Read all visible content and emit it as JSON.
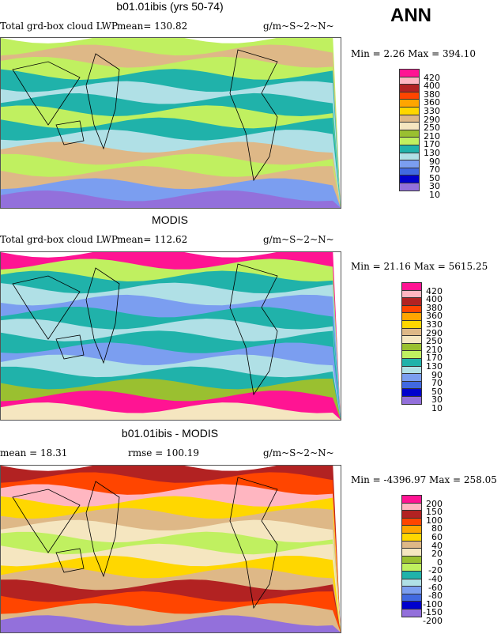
{
  "season": "ANN",
  "panels": [
    {
      "title": "b01.01ibis (yrs 50-74)",
      "left": "Total grd-box cloud LWP",
      "stat": "mean=  130.82",
      "units": "g/m~S~2~N~",
      "minmax": "Min =    2.26  Max = 394.10",
      "levels": [
        "420",
        "400",
        "380",
        "360",
        "330",
        "290",
        "250",
        "210",
        "170",
        "130",
        "90",
        "70",
        "50",
        "30",
        "10"
      ]
    },
    {
      "title": "MODIS",
      "left": "Total grd-box cloud LWP",
      "stat": "mean=  112.62",
      "units": "g/m~S~2~N~",
      "minmax": "Min =   21.16  Max = 5615.25",
      "levels": [
        "420",
        "400",
        "380",
        "360",
        "330",
        "290",
        "250",
        "210",
        "170",
        "130",
        "90",
        "70",
        "50",
        "30",
        "10"
      ]
    },
    {
      "title": "b01.01ibis - MODIS",
      "left": "mean =   18.31",
      "stat": "rmse = 100.19",
      "units": "g/m~S~2~N~",
      "minmax": "Min = -4396.97  Max = 258.05",
      "levels": [
        "200",
        "150",
        "100",
        "80",
        "60",
        "40",
        "20",
        "0",
        "-20",
        "-40",
        "-60",
        "-80",
        "-100",
        "-150",
        "-200"
      ]
    }
  ],
  "palette": [
    "#ff1493",
    "#ffb6c1",
    "#b22222",
    "#ff4500",
    "#ffa500",
    "#ffd700",
    "#deb887",
    "#f5e6c0",
    "#9ac030",
    "#c0f060",
    "#20b2aa",
    "#b0e0e6",
    "#7b9ef0",
    "#4169e1",
    "#0000cd",
    "#9370db"
  ]
}
